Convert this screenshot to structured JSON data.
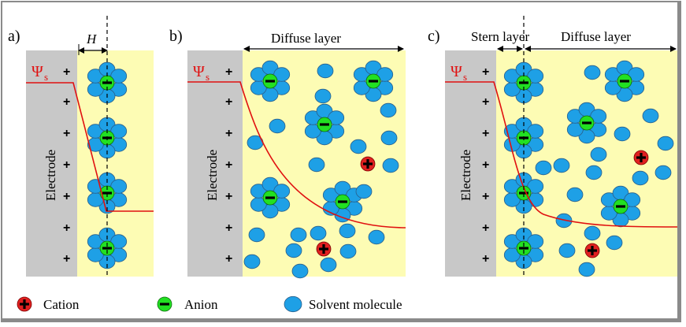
{
  "panels": [
    {
      "label": "a)",
      "layers": [
        {
          "text": "H"
        }
      ],
      "electrode_label": "Electrode",
      "potential_symbol": "Ψ",
      "potential_subscript": "s",
      "charges": [
        "+",
        "+",
        "+",
        "+",
        "+",
        "+",
        "+",
        "+"
      ]
    },
    {
      "label": "b)",
      "layers": [
        {
          "text": "Diffuse layer"
        }
      ],
      "electrode_label": "Electrode",
      "potential_symbol": "Ψ",
      "potential_subscript": "s",
      "charges": [
        "+",
        "+",
        "+",
        "+",
        "+",
        "+",
        "+",
        "+"
      ]
    },
    {
      "label": "c)",
      "layers": [
        {
          "text": "Stern layer"
        },
        {
          "text": "Diffuse layer"
        }
      ],
      "electrode_label": "Electrode",
      "potential_symbol": "Ψ",
      "potential_subscript": "s",
      "charges": [
        "+",
        "+",
        "+",
        "+",
        "+",
        "+",
        "+",
        "+"
      ]
    }
  ],
  "legend": [
    {
      "symbol": "+",
      "label": "Cation",
      "color": "#e02020"
    },
    {
      "symbol": "−",
      "label": "Anion",
      "color": "#22e022"
    },
    {
      "symbol": "",
      "label": "Solvent molecule",
      "color": "#1ea0e6"
    }
  ],
  "colors": {
    "electrode": "#c8c8c8",
    "electrolyte": "#fdfcb4",
    "potential_curve": "#e01010",
    "solvent": "#1ea0e6",
    "anion": "#22e022",
    "cation": "#e02020"
  }
}
